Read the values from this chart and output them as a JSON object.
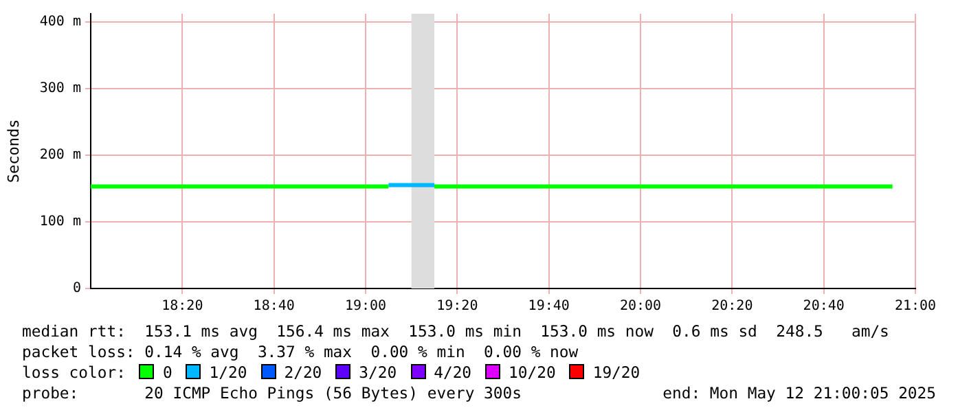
{
  "chart_data": {
    "type": "line",
    "ylabel": "Seconds",
    "legend_title": "loss color:",
    "legend": "bottom",
    "grid": true,
    "marker": "none",
    "line_style": "solid",
    "xlim": [
      18,
      21
    ],
    "ylim": [
      0,
      412
    ],
    "xticks": [
      {
        "value": 18.3333,
        "label": "18:20"
      },
      {
        "value": 18.6667,
        "label": "18:40"
      },
      {
        "value": 19,
        "label": "19:00"
      },
      {
        "value": 19.3333,
        "label": "19:20"
      },
      {
        "value": 19.6667,
        "label": "19:40"
      },
      {
        "value": 20,
        "label": "20:00"
      },
      {
        "value": 20.3333,
        "label": "20:20"
      },
      {
        "value": 20.6667,
        "label": "20:40"
      },
      {
        "value": 21,
        "label": "21:00"
      }
    ],
    "yticks": [
      0,
      {
        "value": 100,
        "label": "100 m"
      },
      {
        "value": 200,
        "label": "200 m"
      },
      {
        "value": 300,
        "label": "300 m"
      },
      {
        "value": 400,
        "label": "400 m"
      }
    ],
    "bands": [
      {
        "axis": "x",
        "from": 19.1667,
        "to": 19.25,
        "color": "#dddddd"
      }
    ],
    "series": [
      {
        "name": "0",
        "color": "#00ff00",
        "x": [
          18,
          19.0833,
          null,
          19.25,
          20.9167
        ],
        "values": [
          153,
          153,
          null,
          153,
          153
        ]
      },
      {
        "name": "1/20",
        "color": "#00b8ff",
        "x": [
          19.0833,
          19.25
        ],
        "values": [
          155,
          155
        ]
      },
      {
        "name": "2/20",
        "color": "#0059ff"
      },
      {
        "name": "3/20",
        "color": "#5e00ff"
      },
      {
        "name": "4/20",
        "color": "#7e00ff"
      },
      {
        "name": "10/20",
        "color": "#dd00ff"
      },
      {
        "name": "19/20",
        "color": "#ff0000"
      }
    ],
    "annotations": [
      "median rtt:  153.1 ms avg  156.4 ms max  153.0 ms min  153.0 ms now  0.6 ms sd  248.5   am/s",
      "packet loss: 0.14 % avg  3.37 % max  0.00 % min  0.00 % now",
      "probe:       20 ICMP Echo Pings (56 Bytes) every 300s",
      "end: Mon May 12 21:00:05 2025"
    ]
  }
}
